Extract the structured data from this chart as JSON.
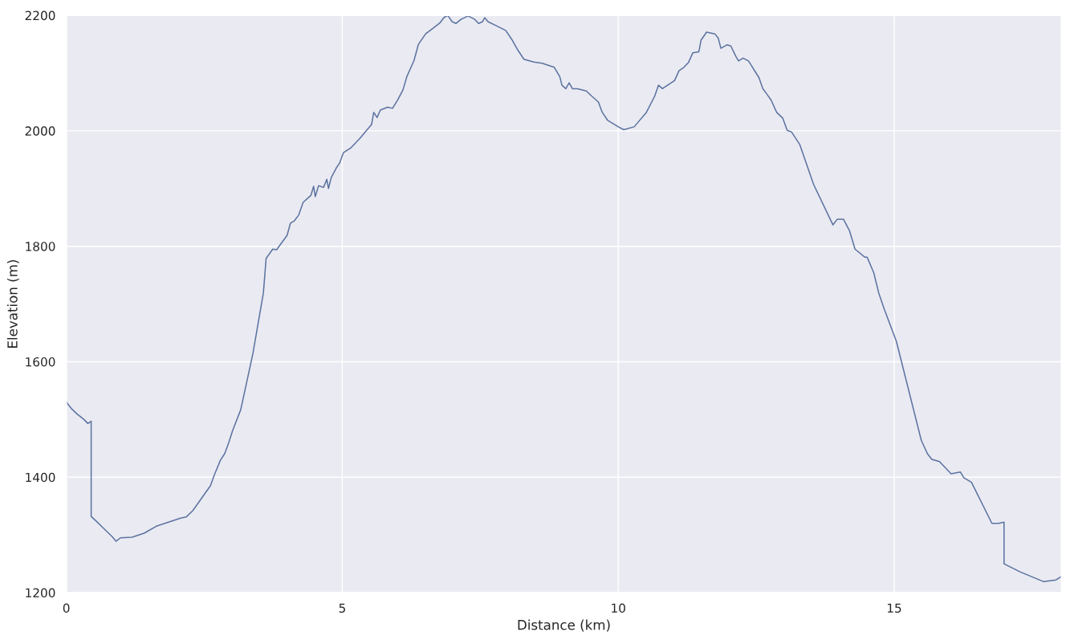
{
  "chart_data": {
    "type": "line",
    "xlabel": "Distance (km)",
    "ylabel": "Elevation (m)",
    "xlim": [
      0,
      18.03
    ],
    "ylim": [
      1200,
      2200
    ],
    "xticks": [
      0,
      5,
      10,
      15
    ],
    "yticks": [
      1200,
      1400,
      1600,
      1800,
      2000,
      2200
    ],
    "grid": true,
    "x": [
      0,
      0.1,
      0.2,
      0.32,
      0.39,
      0.45,
      0.45,
      0.54,
      0.68,
      0.83,
      0.9,
      0.98,
      1.19,
      1.41,
      1.63,
      1.85,
      2.07,
      2.17,
      2.29,
      2.61,
      2.69,
      2.79,
      2.87,
      2.94,
      3.01,
      3.16,
      3.38,
      3.57,
      3.62,
      3.74,
      3.81,
      4.0,
      4.06,
      4.13,
      4.21,
      4.29,
      4.43,
      4.48,
      4.51,
      4.57,
      4.66,
      4.72,
      4.75,
      4.8,
      4.9,
      4.95,
      5.02,
      5.15,
      5.31,
      5.53,
      5.57,
      5.63,
      5.69,
      5.82,
      5.91,
      6.0,
      6.1,
      6.17,
      6.3,
      6.38,
      6.51,
      6.65,
      6.77,
      6.84,
      6.91,
      6.99,
      7.06,
      7.15,
      7.28,
      7.4,
      7.47,
      7.54,
      7.58,
      7.64,
      7.77,
      7.96,
      8.08,
      8.18,
      8.29,
      8.47,
      8.62,
      8.84,
      8.94,
      8.98,
      9.05,
      9.11,
      9.17,
      9.26,
      9.42,
      9.52,
      9.64,
      9.71,
      9.81,
      10.0,
      10.1,
      10.29,
      10.36,
      10.51,
      10.66,
      10.73,
      10.8,
      11.02,
      11.1,
      11.19,
      11.27,
      11.35,
      11.46,
      11.5,
      11.6,
      11.75,
      11.81,
      11.86,
      11.97,
      12.04,
      12.13,
      12.18,
      12.26,
      12.36,
      12.55,
      12.62,
      12.69,
      12.77,
      12.87,
      12.98,
      13.06,
      13.14,
      13.29,
      13.42,
      13.54,
      13.89,
      13.97,
      14.08,
      14.19,
      14.29,
      14.47,
      14.51,
      14.63,
      14.72,
      14.82,
      15.04,
      15.49,
      15.6,
      15.68,
      15.82,
      15.92,
      16.03,
      16.2,
      16.26,
      16.4,
      16.77,
      16.89,
      16.99,
      16.99,
      17.28,
      17.71,
      17.93,
      18.03
    ],
    "series": [
      {
        "color": "#5b73a0",
        "values": [
          1530,
          1518,
          1509,
          1500,
          1493,
          1497,
          1332,
          1324,
          1311,
          1297,
          1289,
          1295,
          1296,
          1303,
          1315,
          1322,
          1329,
          1331,
          1342,
          1385,
          1406,
          1429,
          1441,
          1459,
          1480,
          1517,
          1614,
          1719,
          1779,
          1795,
          1794,
          1819,
          1840,
          1844,
          1854,
          1876,
          1888,
          1904,
          1886,
          1905,
          1902,
          1916,
          1900,
          1919,
          1937,
          1944,
          1962,
          1970,
          1986,
          2011,
          2032,
          2023,
          2036,
          2041,
          2039,
          2053,
          2071,
          2094,
          2122,
          2150,
          2168,
          2178,
          2187,
          2196,
          2200,
          2189,
          2186,
          2193,
          2199,
          2193,
          2186,
          2189,
          2196,
          2189,
          2183,
          2174,
          2157,
          2140,
          2124,
          2119,
          2117,
          2110,
          2094,
          2079,
          2073,
          2083,
          2073,
          2073,
          2069,
          2060,
          2050,
          2032,
          2018,
          2007,
          2002,
          2007,
          2015,
          2032,
          2060,
          2079,
          2073,
          2087,
          2104,
          2110,
          2118,
          2135,
          2137,
          2157,
          2171,
          2168,
          2161,
          2143,
          2149,
          2147,
          2129,
          2121,
          2126,
          2121,
          2092,
          2073,
          2064,
          2053,
          2032,
          2022,
          2001,
          1998,
          1976,
          1940,
          1907,
          1837,
          1847,
          1847,
          1827,
          1795,
          1781,
          1781,
          1754,
          1719,
          1691,
          1635,
          1464,
          1441,
          1431,
          1427,
          1417,
          1406,
          1409,
          1399,
          1391,
          1320,
          1320,
          1322,
          1250,
          1236,
          1219,
          1222,
          1228
        ]
      }
    ]
  }
}
